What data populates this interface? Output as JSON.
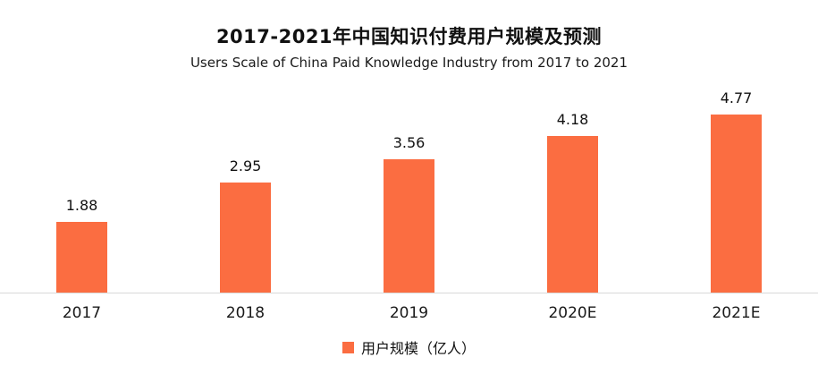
{
  "title": "2017-2021年中国知识付费用户规模及预测",
  "subtitle": "Users Scale of China Paid Knowledge Industry from 2017 to 2021",
  "chart_data": {
    "type": "bar",
    "categories": [
      "2017",
      "2018",
      "2019",
      "2020E",
      "2021E"
    ],
    "values": [
      1.88,
      2.95,
      3.56,
      4.18,
      4.77
    ],
    "value_labels": [
      "1.88",
      "2.95",
      "3.56",
      "4.18",
      "4.77"
    ],
    "title": "2017-2021年中国知识付费用户规模及预测",
    "subtitle": "Users Scale of China Paid Knowledge Industry from 2017 to 2021",
    "xlabel": "",
    "ylabel": "",
    "ylim": [
      0,
      5
    ],
    "grid": false,
    "y_axis_visible": false,
    "legend_position": "bottom",
    "legend": [
      "用户规模（亿人）"
    ],
    "bar_color": "#FB6D41",
    "axis_line_color": "#d9d9d9"
  },
  "legend": {
    "label": "用户规模（亿人）",
    "swatch_color": "#FB6D41"
  }
}
